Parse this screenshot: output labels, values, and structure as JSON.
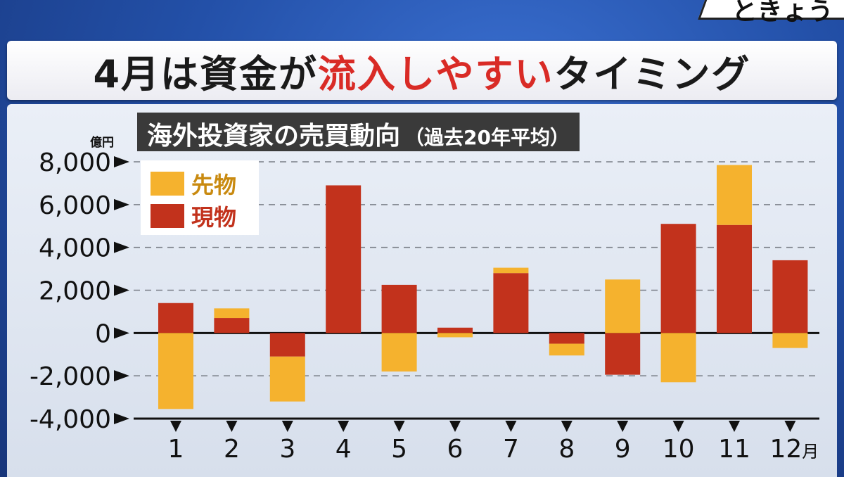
{
  "corner_text": "ときょう",
  "headline": {
    "part1": "4月は資金が",
    "part2": "流入しやすい",
    "part3": "タイミング"
  },
  "chart_title": "海外投資家の売買動向",
  "chart_title_note": "（過去20年平均）",
  "colors": {
    "futures": "#f5b22e",
    "spot": "#c2321c",
    "highlight": "#d92b26"
  },
  "chart_data": {
    "type": "bar",
    "stacked": true,
    "categories": [
      "1",
      "2",
      "3",
      "4",
      "5",
      "6",
      "7",
      "8",
      "9",
      "10",
      "11",
      "12月"
    ],
    "ylabel": "億円",
    "ylim": [
      -4000,
      8000
    ],
    "yticks": [
      "8,000",
      "6,000",
      "4,000",
      "2,000",
      "0",
      "-2,000",
      "-4,000"
    ],
    "grid": true,
    "legend_position": "top-left",
    "series": [
      {
        "name": "現物",
        "values": [
          1400,
          700,
          -1100,
          6900,
          2250,
          250,
          2800,
          -500,
          -1950,
          5100,
          5050,
          3400
        ]
      },
      {
        "name": "先物",
        "values": [
          -3550,
          450,
          -2100,
          0,
          -1800,
          -200,
          250,
          -550,
          2500,
          -2300,
          2800,
          -700
        ]
      }
    ]
  }
}
